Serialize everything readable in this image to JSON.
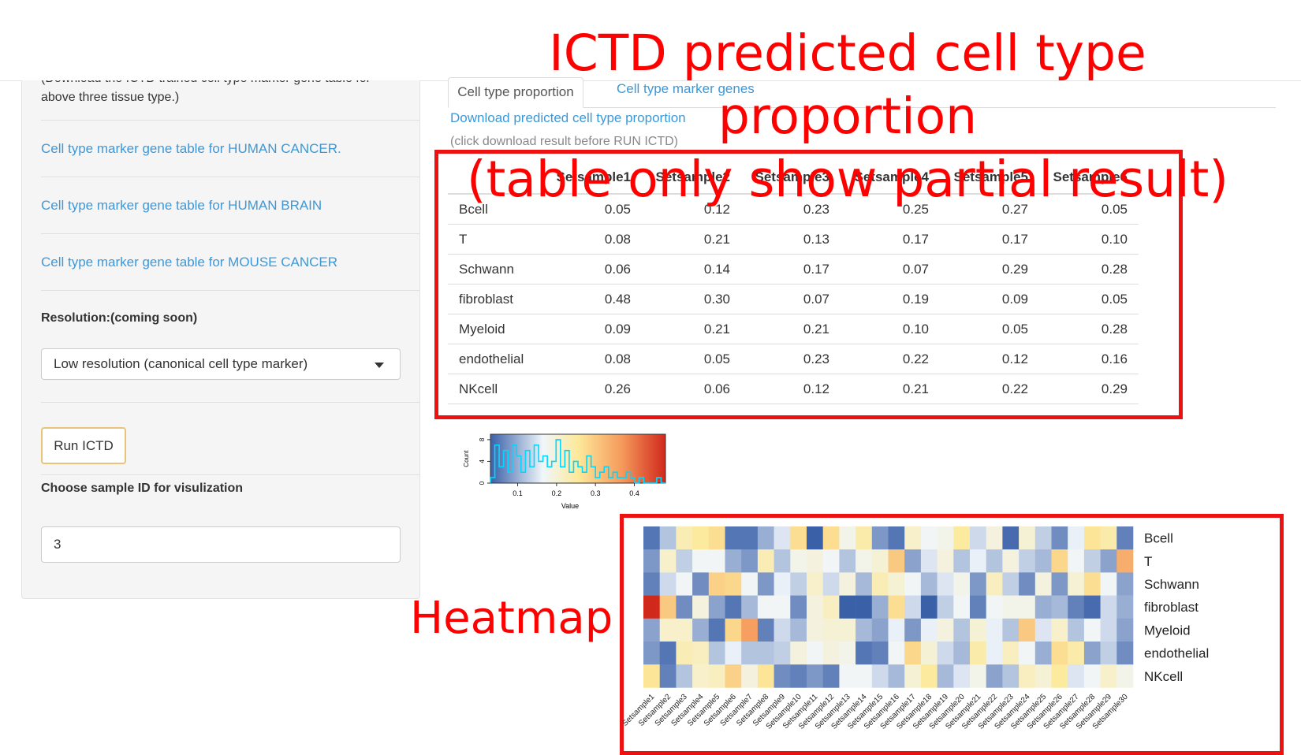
{
  "sidebar": {
    "intro_text": "(Download the ICTD trained cell type marker gene table for above three tissue type.)",
    "links": [
      {
        "label": "Cell type marker gene table for HUMAN CANCER."
      },
      {
        "label": "Cell type marker gene table for HUMAN BRAIN"
      },
      {
        "label": "Cell type marker gene table for MOUSE CANCER"
      }
    ],
    "resolution_label": "Resolution:(coming soon)",
    "resolution_value": "Low resolution (canonical cell type marker)",
    "run_button": "Run ICTD",
    "sample_label": "Choose sample ID for visulization",
    "sample_value": "3"
  },
  "main": {
    "tabs": [
      {
        "label": "Cell type proportion",
        "active": true
      },
      {
        "label": "Cell type marker genes",
        "active": false
      }
    ],
    "download_link": "Download predicted cell type proportion",
    "note": "(click download result before RUN ICTD)"
  },
  "overlay": {
    "title_line1": "ICTD predicted cell type proportion",
    "title_line2": "(table only show partial result)",
    "heatmap_word": "Heatmap",
    "box_color": "#ee1111"
  },
  "table": {
    "columns": [
      "Setsample1",
      "Setsample2",
      "Setsample3",
      "Setsample4",
      "Setsample5",
      "Setsample6"
    ],
    "rows": [
      {
        "name": "Bcell",
        "values": [
          "0.05",
          "0.12",
          "0.23",
          "0.25",
          "0.27",
          "0.05"
        ]
      },
      {
        "name": "T",
        "values": [
          "0.08",
          "0.21",
          "0.13",
          "0.17",
          "0.17",
          "0.10"
        ]
      },
      {
        "name": "Schwann",
        "values": [
          "0.06",
          "0.14",
          "0.17",
          "0.07",
          "0.29",
          "0.28"
        ]
      },
      {
        "name": "fibroblast",
        "values": [
          "0.48",
          "0.30",
          "0.07",
          "0.19",
          "0.09",
          "0.05"
        ]
      },
      {
        "name": "Myeloid",
        "values": [
          "0.09",
          "0.21",
          "0.21",
          "0.10",
          "0.05",
          "0.28"
        ]
      },
      {
        "name": "endothelial",
        "values": [
          "0.08",
          "0.05",
          "0.23",
          "0.22",
          "0.12",
          "0.16"
        ]
      },
      {
        "name": "NKcell",
        "values": [
          "0.26",
          "0.06",
          "0.12",
          "0.21",
          "0.22",
          "0.29"
        ]
      }
    ]
  },
  "chart_data": [
    {
      "type": "histogram",
      "xlabel": "Value",
      "ylabel": "Count",
      "xticks": [
        "0.1",
        "0.2",
        "0.3",
        "0.4"
      ],
      "yticks": [
        "0",
        "4",
        "8"
      ],
      "xlim": [
        0.03,
        0.48
      ],
      "colorscale": [
        "#3a60a8",
        "#f0f6fa",
        "#fde99a",
        "#f59a5c",
        "#d1281c"
      ],
      "trace_color": "#00d8ff",
      "counts": [
        1,
        7,
        3,
        6,
        2,
        7,
        5,
        2,
        6,
        3,
        7,
        4,
        5,
        3,
        4,
        8,
        3,
        6,
        2,
        4,
        3,
        2,
        5,
        3,
        1,
        2,
        3,
        1,
        2,
        1,
        1,
        2,
        1,
        0,
        1,
        0,
        0,
        0,
        1,
        0
      ]
    },
    {
      "type": "heatmap",
      "rows": [
        "Bcell",
        "T",
        "Schwann",
        "fibroblast",
        "Myeloid",
        "endothelial",
        "NKcell"
      ],
      "columns": [
        "Setsample1",
        "Setsample2",
        "Setsample3",
        "Setsample4",
        "Setsample5",
        "Setsample6",
        "Setsample7",
        "Setsample8",
        "Setsample9",
        "Setsample10",
        "Setsample11",
        "Setsample12",
        "Setsample13",
        "Setsample14",
        "Setsample15",
        "Setsample16",
        "Setsample17",
        "Setsample18",
        "Setsample19",
        "Setsample20",
        "Setsample21",
        "Setsample22",
        "Setsample23",
        "Setsample24",
        "Setsample25",
        "Setsample26",
        "Setsample27",
        "Setsample28",
        "Setsample29",
        "Setsample30"
      ],
      "values": [
        [
          0.05,
          0.12,
          0.23,
          0.25,
          0.27,
          0.05,
          0.05,
          0.1,
          0.15,
          0.27,
          0.03,
          0.27,
          0.18,
          0.24,
          0.08,
          0.05,
          0.21,
          0.17,
          0.18,
          0.25,
          0.14,
          0.19,
          0.04,
          0.2,
          0.13,
          0.07,
          0.16,
          0.26,
          0.24,
          0.06
        ],
        [
          0.08,
          0.21,
          0.13,
          0.17,
          0.17,
          0.1,
          0.08,
          0.23,
          0.12,
          0.18,
          0.19,
          0.17,
          0.12,
          0.18,
          0.2,
          0.3,
          0.09,
          0.15,
          0.19,
          0.12,
          0.16,
          0.12,
          0.19,
          0.13,
          0.11,
          0.28,
          0.17,
          0.13,
          0.09,
          0.34
        ],
        [
          0.06,
          0.14,
          0.17,
          0.07,
          0.29,
          0.28,
          0.17,
          0.08,
          0.16,
          0.13,
          0.21,
          0.14,
          0.19,
          0.11,
          0.23,
          0.2,
          0.17,
          0.11,
          0.15,
          0.18,
          0.08,
          0.22,
          0.13,
          0.07,
          0.19,
          0.08,
          0.2,
          0.27,
          0.17,
          0.09
        ],
        [
          0.48,
          0.3,
          0.07,
          0.19,
          0.09,
          0.05,
          0.11,
          0.17,
          0.17,
          0.07,
          0.19,
          0.22,
          0.03,
          0.03,
          0.1,
          0.27,
          0.14,
          0.02,
          0.13,
          0.17,
          0.06,
          0.17,
          0.18,
          0.18,
          0.1,
          0.11,
          0.06,
          0.04,
          0.14,
          0.1
        ],
        [
          0.09,
          0.21,
          0.21,
          0.1,
          0.05,
          0.28,
          0.36,
          0.06,
          0.14,
          0.11,
          0.19,
          0.2,
          0.2,
          0.11,
          0.09,
          0.16,
          0.08,
          0.16,
          0.19,
          0.12,
          0.2,
          0.16,
          0.12,
          0.3,
          0.15,
          0.21,
          0.12,
          0.17,
          0.14,
          0.09
        ],
        [
          0.08,
          0.05,
          0.23,
          0.22,
          0.12,
          0.16,
          0.12,
          0.12,
          0.13,
          0.19,
          0.17,
          0.19,
          0.18,
          0.05,
          0.06,
          0.17,
          0.28,
          0.2,
          0.14,
          0.11,
          0.24,
          0.16,
          0.22,
          0.17,
          0.1,
          0.27,
          0.24,
          0.09,
          0.13,
          0.07
        ],
        [
          0.26,
          0.06,
          0.12,
          0.21,
          0.22,
          0.29,
          0.19,
          0.26,
          0.07,
          0.06,
          0.08,
          0.06,
          0.17,
          0.17,
          0.14,
          0.11,
          0.2,
          0.25,
          0.11,
          0.15,
          0.18,
          0.09,
          0.12,
          0.22,
          0.2,
          0.25,
          0.15,
          0.17,
          0.21,
          0.18
        ]
      ]
    }
  ]
}
